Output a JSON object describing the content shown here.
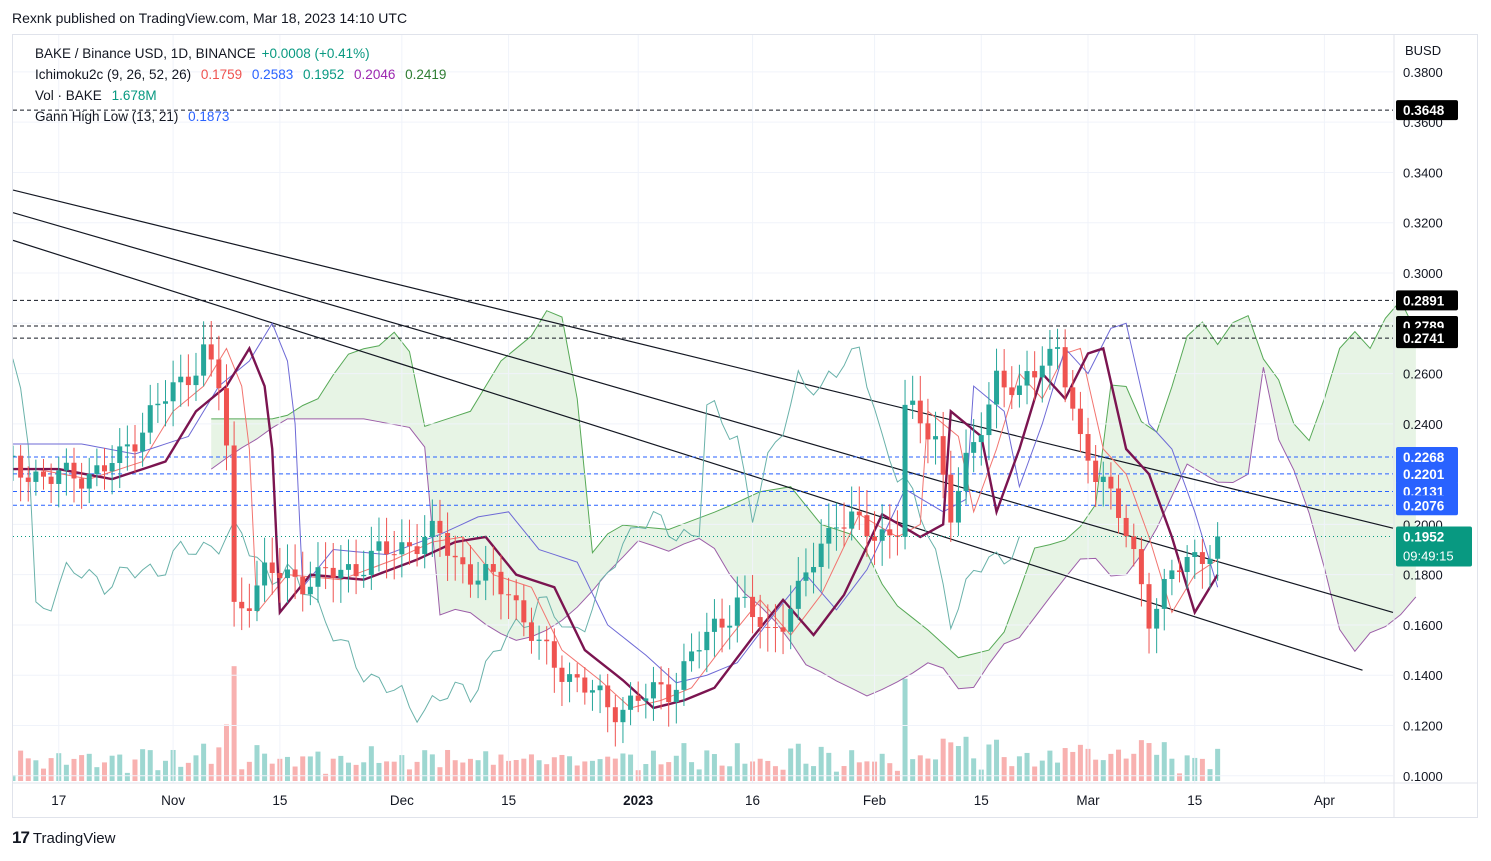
{
  "header": {
    "published": "Rexnk published on TradingView.com, Mar 18, 2023 14:10 UTC"
  },
  "legend": {
    "symbol": "BAKE / Binance USD, 1D, BINANCE",
    "change": "+0.0008 (+0.41%)",
    "ichimoku_label": "Ichimoku2c (9, 26, 52, 26)",
    "ichimoku_values": [
      "0.1759",
      "0.2583",
      "0.1952",
      "0.2046",
      "0.2419"
    ],
    "vol_label": "Vol · BAKE",
    "vol_value": "1.678M",
    "gann_label": "Gann High Low (13, 21)",
    "gann_value": "0.1873"
  },
  "footer": {
    "brand": "TradingView",
    "logo_mark": "17"
  },
  "colors": {
    "up": "#26a69a",
    "down": "#ef5350",
    "tenkan": "#f2746f",
    "kijun": "#6e6ad6",
    "span_a": "#57a957",
    "span_b": "#9c5ea8",
    "cloud": "#d7ecd4",
    "lagging": "#6ab2aa",
    "gann_red": "#7b1450",
    "gann_blue": "#2962ff",
    "label_bg": "#000000",
    "price_label": "#089981",
    "hline_blue": "#2962ff"
  },
  "chart_data": {
    "type": "candlestick",
    "title": "BAKE / Binance USD, 1D, BINANCE",
    "currency": "BUSD",
    "y_axis": {
      "min": 0.1,
      "max": 0.38,
      "ticks": [
        "0.1000",
        "0.1200",
        "0.1400",
        "0.1600",
        "0.1800",
        "0.2000",
        "0.2200",
        "0.2400",
        "0.2600",
        "0.2800",
        "0.3000",
        "0.3200",
        "0.3400",
        "0.3600",
        "0.3800"
      ]
    },
    "x_axis": {
      "start": "2022-10-11",
      "end": "2023-04-10",
      "ticks": [
        {
          "date": "2022-10-17",
          "label": "17"
        },
        {
          "date": "2022-11-01",
          "label": "Nov"
        },
        {
          "date": "2022-11-15",
          "label": "15"
        },
        {
          "date": "2022-12-01",
          "label": "Dec"
        },
        {
          "date": "2022-12-15",
          "label": "15"
        },
        {
          "date": "2023-01-01",
          "label": "2023"
        },
        {
          "date": "2023-01-16",
          "label": "16"
        },
        {
          "date": "2023-02-01",
          "label": "Feb"
        },
        {
          "date": "2023-02-15",
          "label": "15"
        },
        {
          "date": "2023-03-01",
          "label": "Mar"
        },
        {
          "date": "2023-03-15",
          "label": "15"
        },
        {
          "date": "2023-04-01",
          "label": "Apr"
        }
      ]
    },
    "last_price": {
      "value": 0.1952,
      "label": "0.1952",
      "countdown": "09:49:15"
    },
    "horizontal_lines": [
      {
        "value": 0.3648,
        "label": "0.3648",
        "style": "black"
      },
      {
        "value": 0.2891,
        "label": "0.2891",
        "style": "black"
      },
      {
        "value": 0.2789,
        "label": "0.2789",
        "style": "black"
      },
      {
        "value": 0.2741,
        "label": "0.2741",
        "style": "black"
      },
      {
        "value": 0.2268,
        "label": "0.2268",
        "style": "blue"
      },
      {
        "value": 0.2201,
        "label": "0.2201",
        "style": "blue"
      },
      {
        "value": 0.2131,
        "label": "0.2131",
        "style": "blue"
      },
      {
        "value": 0.2076,
        "label": "0.2076",
        "style": "blue"
      }
    ],
    "trendlines": [
      {
        "start": [
          "2022-10-11",
          0.333
        ],
        "end": [
          "2023-04-10",
          0.1985
        ]
      },
      {
        "start": [
          "2022-10-11",
          0.324
        ],
        "end": [
          "2023-04-10",
          0.165
        ]
      },
      {
        "start": [
          "2022-10-11",
          0.313
        ],
        "end": [
          "2023-04-06",
          0.142
        ]
      }
    ],
    "close": [
      {
        "date": "2022-10-11",
        "close": 0.222
      },
      {
        "date": "2022-10-18",
        "close": 0.218
      },
      {
        "date": "2022-10-25",
        "close": 0.225
      },
      {
        "date": "2022-10-29",
        "close": 0.245
      },
      {
        "date": "2022-11-02",
        "close": 0.255
      },
      {
        "date": "2022-11-05",
        "close": 0.27
      },
      {
        "date": "2022-11-07",
        "close": 0.255
      },
      {
        "date": "2022-11-08",
        "close": 0.23
      },
      {
        "date": "2022-11-09",
        "close": 0.165
      },
      {
        "date": "2022-11-13",
        "close": 0.18
      },
      {
        "date": "2022-11-20",
        "close": 0.178
      },
      {
        "date": "2022-11-27",
        "close": 0.186
      },
      {
        "date": "2022-12-02",
        "close": 0.193
      },
      {
        "date": "2022-12-06",
        "close": 0.195
      },
      {
        "date": "2022-12-10",
        "close": 0.18
      },
      {
        "date": "2022-12-15",
        "close": 0.175
      },
      {
        "date": "2022-12-19",
        "close": 0.15
      },
      {
        "date": "2022-12-24",
        "close": 0.138
      },
      {
        "date": "2022-12-28",
        "close": 0.127
      },
      {
        "date": "2023-01-01",
        "close": 0.13
      },
      {
        "date": "2023-01-05",
        "close": 0.135
      },
      {
        "date": "2023-01-10",
        "close": 0.155
      },
      {
        "date": "2023-01-14",
        "close": 0.17
      },
      {
        "date": "2023-01-18",
        "close": 0.156
      },
      {
        "date": "2023-01-22",
        "close": 0.172
      },
      {
        "date": "2023-01-27",
        "close": 0.204
      },
      {
        "date": "2023-02-01",
        "close": 0.195
      },
      {
        "date": "2023-02-04",
        "close": 0.2
      },
      {
        "date": "2023-02-05",
        "close": 0.245
      },
      {
        "date": "2023-02-09",
        "close": 0.235
      },
      {
        "date": "2023-02-11",
        "close": 0.205
      },
      {
        "date": "2023-02-14",
        "close": 0.23
      },
      {
        "date": "2023-02-17",
        "close": 0.26
      },
      {
        "date": "2023-02-20",
        "close": 0.25
      },
      {
        "date": "2023-02-23",
        "close": 0.268
      },
      {
        "date": "2023-02-25",
        "close": 0.27
      },
      {
        "date": "2023-02-28",
        "close": 0.23
      },
      {
        "date": "2023-03-03",
        "close": 0.22
      },
      {
        "date": "2023-03-06",
        "close": 0.195
      },
      {
        "date": "2023-03-09",
        "close": 0.165
      },
      {
        "date": "2023-03-12",
        "close": 0.18
      },
      {
        "date": "2023-03-15",
        "close": 0.186
      },
      {
        "date": "2023-03-18",
        "close": 0.1952
      }
    ],
    "indicators": [
      "Ichimoku2c (9, 26, 52, 26)",
      "Vol · BAKE",
      "Gann High Low (13, 21)"
    ]
  }
}
